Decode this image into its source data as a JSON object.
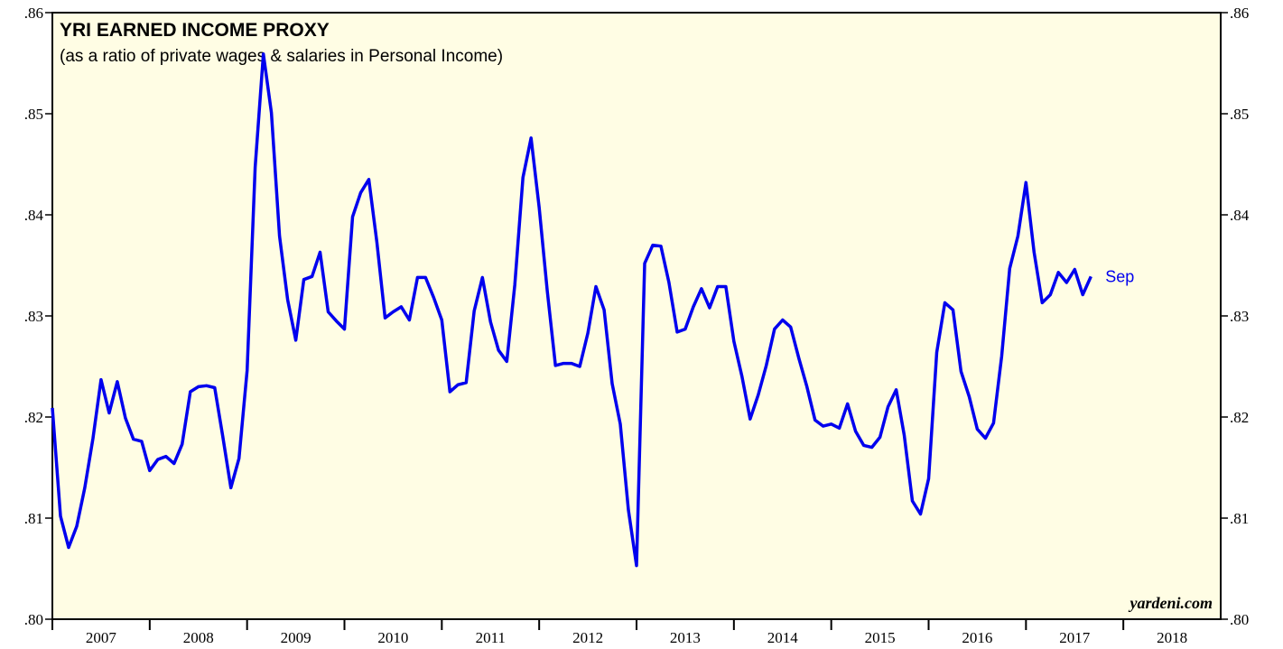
{
  "chart_data": {
    "type": "line",
    "title": "YRI EARNED INCOME PROXY",
    "subtitle": "(as a ratio of private wages & salaries in Personal Income)",
    "credit": "yardeni.com",
    "annotation": "Sep",
    "xlim": [
      2007,
      2019
    ],
    "xticks": [
      2007,
      2008,
      2009,
      2010,
      2011,
      2012,
      2013,
      2014,
      2015,
      2016,
      2017,
      2018
    ],
    "ylim": [
      0.8,
      0.86
    ],
    "yticks": [
      {
        "value": 0.8,
        "label": ".80"
      },
      {
        "value": 0.81,
        "label": ".81"
      },
      {
        "value": 0.82,
        "label": ".82"
      },
      {
        "value": 0.83,
        "label": ".83"
      },
      {
        "value": 0.84,
        "label": ".84"
      },
      {
        "value": 0.85,
        "label": ".85"
      },
      {
        "value": 0.86,
        "label": ".86"
      }
    ],
    "color": "#0000ee",
    "x": [
      2007,
      2007.083,
      2007.167,
      2007.25,
      2007.333,
      2007.417,
      2007.5,
      2007.583,
      2007.667,
      2007.75,
      2007.833,
      2007.917,
      2008,
      2008.083,
      2008.167,
      2008.25,
      2008.333,
      2008.417,
      2008.5,
      2008.583,
      2008.667,
      2008.75,
      2008.833,
      2008.917,
      2009,
      2009.083,
      2009.167,
      2009.25,
      2009.333,
      2009.417,
      2009.5,
      2009.583,
      2009.667,
      2009.75,
      2009.833,
      2009.917,
      2010,
      2010.083,
      2010.167,
      2010.25,
      2010.333,
      2010.417,
      2010.5,
      2010.583,
      2010.667,
      2010.75,
      2010.833,
      2010.917,
      2011,
      2011.083,
      2011.167,
      2011.25,
      2011.333,
      2011.417,
      2011.5,
      2011.583,
      2011.667,
      2011.75,
      2011.833,
      2011.917,
      2012,
      2012.083,
      2012.167,
      2012.25,
      2012.333,
      2012.417,
      2012.5,
      2012.583,
      2012.667,
      2012.75,
      2012.833,
      2012.917,
      2013,
      2013.083,
      2013.167,
      2013.25,
      2013.333,
      2013.417,
      2013.5,
      2013.583,
      2013.667,
      2013.75,
      2013.833,
      2013.917,
      2014,
      2014.083,
      2014.167,
      2014.25,
      2014.333,
      2014.417,
      2014.5,
      2014.583,
      2014.667,
      2014.75,
      2014.833,
      2014.917,
      2015,
      2015.083,
      2015.167,
      2015.25,
      2015.333,
      2015.417,
      2015.5,
      2015.583,
      2015.667,
      2015.75,
      2015.833,
      2015.917,
      2016,
      2016.083,
      2016.167,
      2016.25,
      2016.333,
      2016.417,
      2016.5,
      2016.583,
      2016.667,
      2016.75,
      2016.833,
      2016.917,
      2017,
      2017.083,
      2017.167,
      2017.25,
      2017.333,
      2017.417,
      2017.5,
      2017.583,
      2017.667
    ],
    "values": [
      0.8209,
      0.8102,
      0.8071,
      0.8092,
      0.813,
      0.8179,
      0.8237,
      0.8204,
      0.8235,
      0.8199,
      0.8178,
      0.8176,
      0.8147,
      0.8158,
      0.8161,
      0.8154,
      0.8173,
      0.8225,
      0.823,
      0.8231,
      0.8229,
      0.8181,
      0.813,
      0.8159,
      0.8246,
      0.8447,
      0.8559,
      0.8501,
      0.8379,
      0.8316,
      0.8276,
      0.8336,
      0.8339,
      0.8363,
      0.8304,
      0.8295,
      0.8287,
      0.8398,
      0.8422,
      0.8435,
      0.8373,
      0.8298,
      0.8304,
      0.8309,
      0.8296,
      0.8338,
      0.8338,
      0.8318,
      0.8296,
      0.8225,
      0.8232,
      0.8234,
      0.8305,
      0.8338,
      0.8294,
      0.8266,
      0.8255,
      0.8331,
      0.8437,
      0.8476,
      0.8407,
      0.8325,
      0.8251,
      0.8253,
      0.8253,
      0.825,
      0.8283,
      0.8329,
      0.8306,
      0.8233,
      0.8193,
      0.8108,
      0.8053,
      0.8352,
      0.837,
      0.8369,
      0.8333,
      0.8284,
      0.8287,
      0.8309,
      0.8327,
      0.8308,
      0.8329,
      0.8329,
      0.8275,
      0.824,
      0.8198,
      0.8222,
      0.8251,
      0.8287,
      0.8296,
      0.8289,
      0.8258,
      0.823,
      0.8197,
      0.8191,
      0.8193,
      0.8189,
      0.8213,
      0.8186,
      0.8172,
      0.817,
      0.818,
      0.821,
      0.8227,
      0.8182,
      0.8117,
      0.8104,
      0.8139,
      0.8264,
      0.8313,
      0.8306,
      0.8245,
      0.822,
      0.8188,
      0.8179,
      0.8194,
      0.826,
      0.8347,
      0.8379,
      0.8432,
      0.8363,
      0.8313,
      0.8321,
      0.8343,
      0.8333,
      0.8346,
      0.8321,
      0.8339
    ]
  }
}
